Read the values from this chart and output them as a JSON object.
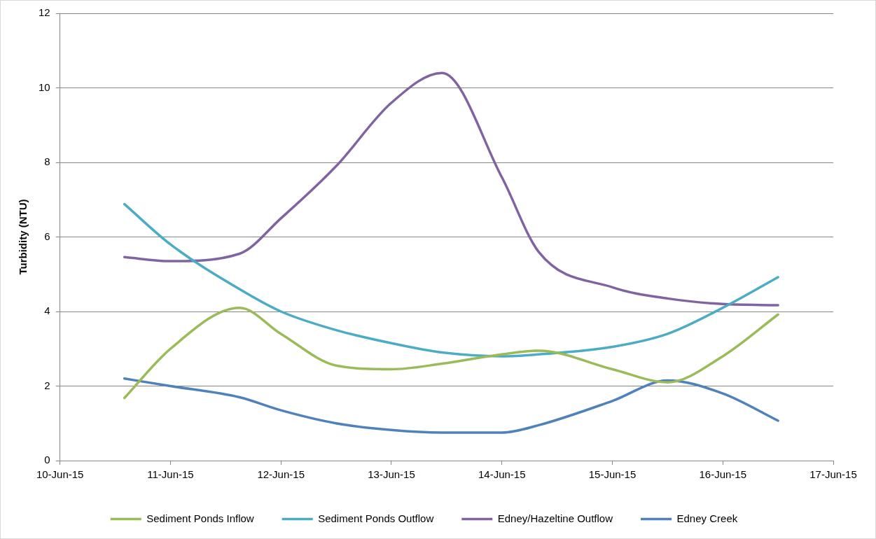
{
  "chart_data": {
    "type": "line",
    "ylabel": "Turbidity (NTU)",
    "x": [
      "--06-10T14:00",
      "--06-11T00:00",
      "--06-11T15:00",
      "--06-12T00:00",
      "--06-12T12:00",
      "--06-13T00:00",
      "--06-13T11:00",
      "--06-14T00:00",
      "--06-14T08:00",
      "--06-15T00:00",
      "--06-15T12:00",
      "--06-16T00:00",
      "--06-16T12:00"
    ],
    "series": [
      {
        "name": "Sediment Ponds Inflow",
        "color": "#9bbb59",
        "values": [
          1.68,
          3.0,
          4.1,
          3.4,
          2.55,
          2.45,
          2.6,
          2.85,
          2.95,
          2.45,
          2.1,
          2.8,
          3.92
        ]
      },
      {
        "name": "Sediment Ponds Outflow",
        "color": "#4bacc6",
        "values": [
          6.88,
          5.8,
          4.6,
          4.0,
          3.5,
          3.15,
          2.9,
          2.8,
          2.85,
          3.05,
          3.4,
          4.1,
          4.92
        ]
      },
      {
        "name": "Edney/Hazeltine Outflow",
        "color": "#8064a2",
        "values": [
          5.46,
          5.35,
          5.55,
          6.5,
          7.9,
          9.6,
          10.4,
          7.6,
          5.6,
          4.65,
          4.35,
          4.2,
          4.17
        ]
      },
      {
        "name": "Edney Creek",
        "color": "#4f81bd",
        "values": [
          2.2,
          2.0,
          1.7,
          1.35,
          1.0,
          0.82,
          0.75,
          0.75,
          0.95,
          1.6,
          2.15,
          1.8,
          1.07
        ]
      }
    ],
    "xlim": [
      "--06-10",
      "--06-17"
    ],
    "xticks": [
      {
        "value": "--06-10",
        "label": "10-Jun-15"
      },
      {
        "value": "--06-11",
        "label": "11-Jun-15"
      },
      {
        "value": "--06-12",
        "label": "12-Jun-15"
      },
      {
        "value": "--06-13",
        "label": "13-Jun-15"
      },
      {
        "value": "--06-14",
        "label": "14-Jun-15"
      },
      {
        "value": "--06-15",
        "label": "15-Jun-15"
      },
      {
        "value": "--06-16",
        "label": "16-Jun-15"
      },
      {
        "value": "--06-17",
        "label": "17-Jun-15"
      }
    ],
    "ylim": [
      0,
      12
    ],
    "yticks": [
      0,
      2,
      4,
      6,
      8,
      10,
      12
    ],
    "grid": "y",
    "legend": "bottom",
    "marker": "none",
    "line_style": "solid"
  }
}
